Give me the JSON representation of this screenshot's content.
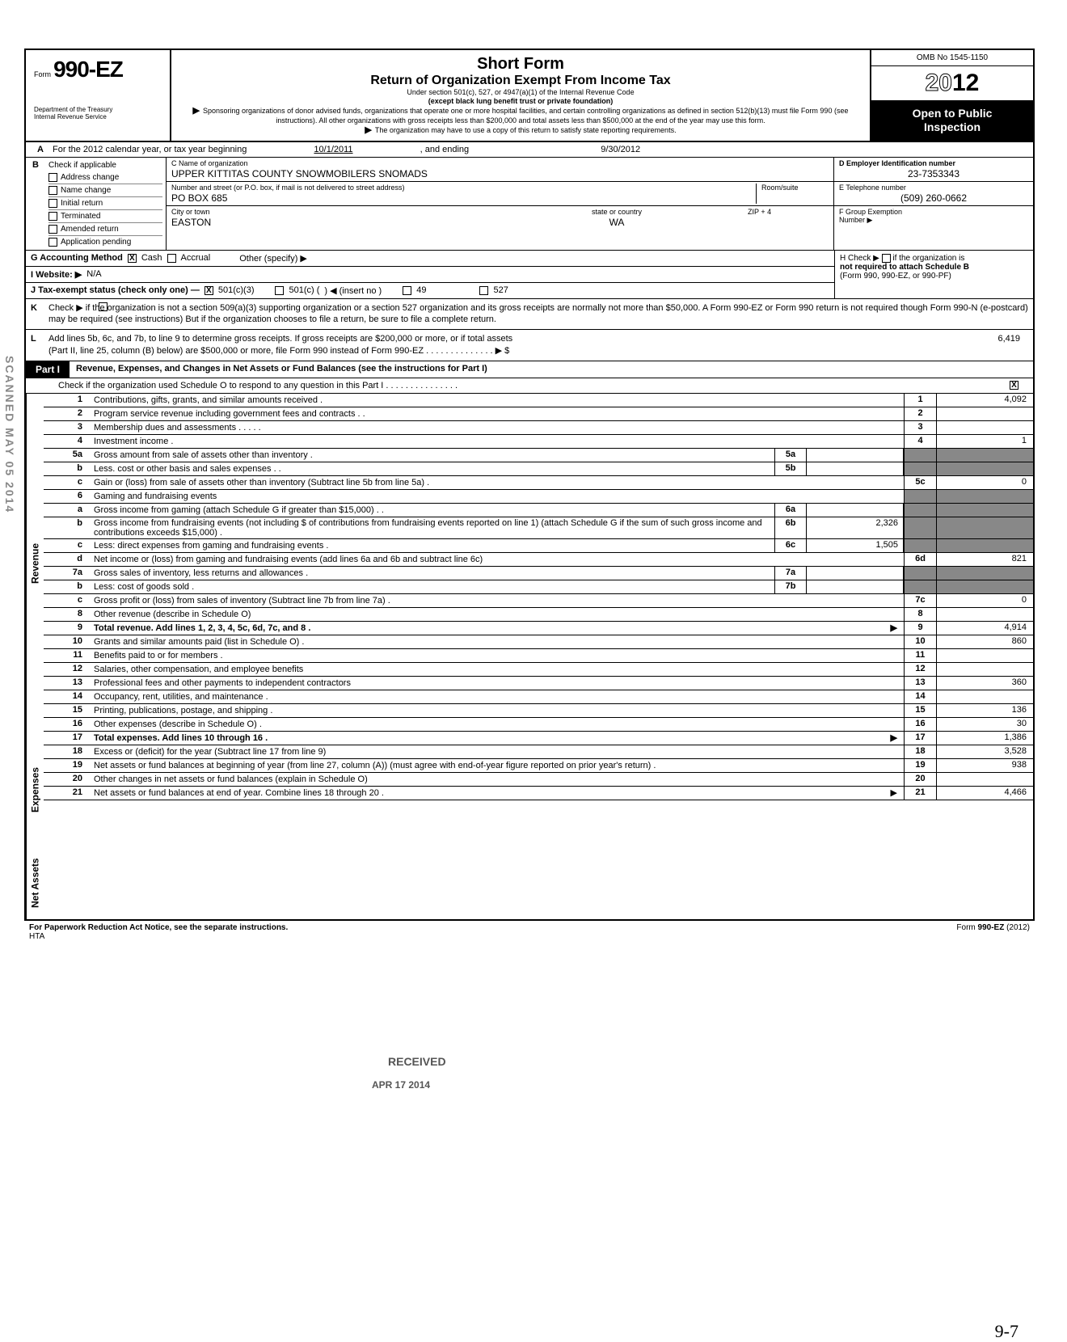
{
  "header": {
    "form_prefix": "Form",
    "form_number": "990-EZ",
    "dept1": "Department of the Treasury",
    "dept2": "Internal Revenue Service",
    "title1": "Short Form",
    "title2": "Return of Organization Exempt From Income Tax",
    "subtitle1": "Under section 501(c), 527, or 4947(a)(1) of the Internal Revenue Code",
    "subtitle2": "(except black lung benefit trust or private foundation)",
    "sponsor": "Sponsoring organizations of donor advised funds, organizations that operate one or more hospital facilities, and certain controlling organizations as defined in section 512(b)(13) must file Form 990 (see instructions). All other organizations with gross receipts less than $200,000 and total assets less than $500,000 at the end of the year may use this form.",
    "copy_note": "The organization may have to use a copy of this return to satisfy state reporting requirements.",
    "omb": "OMB No 1545-1150",
    "year": "2012",
    "open1": "Open to Public",
    "open2": "Inspection"
  },
  "section_a": {
    "text": "For the 2012 calendar year, or tax year beginning",
    "begin": "10/1/2011",
    "middle": ", and ending",
    "end": "9/30/2012"
  },
  "section_b": {
    "label": "Check if applicable",
    "items": [
      "Address change",
      "Name change",
      "Initial return",
      "Terminated",
      "Amended return",
      "Application pending"
    ]
  },
  "section_c": {
    "label_name": "C  Name of organization",
    "name": "UPPER KITTITAS COUNTY SNOWMOBILERS SNOMADS",
    "label_addr": "Number and street (or P.O. box, if mail is not delivered to street address)",
    "addr": "PO BOX 685",
    "room_label": "Room/suite",
    "label_city": "City or town",
    "city": "EASTON",
    "label_state": "state or country",
    "state": "WA",
    "label_zip": "ZIP + 4"
  },
  "section_d": {
    "label": "D  Employer Identification number",
    "value": "23-7353343"
  },
  "section_e": {
    "label": "E  Telephone number",
    "value": "(509) 260-0662"
  },
  "section_f": {
    "label": "F  Group Exemption",
    "label2": "Number ▶"
  },
  "section_g": {
    "label": "G  Accounting Method",
    "cash": "Cash",
    "accrual": "Accrual",
    "other": "Other (specify) ▶"
  },
  "section_h": {
    "label": "H Check ▶",
    "text1": "if the organization is",
    "text2": "not required to attach Schedule B",
    "text3": "(Form 990, 990-EZ, or 990-PF)"
  },
  "section_i": {
    "label": "I   Website: ▶",
    "value": "N/A"
  },
  "section_j": {
    "label": "J   Tax-exempt status (check only one) —",
    "opt1": "501(c)(3)",
    "opt2": "501(c) (",
    "insert": ") ◀ (insert no )",
    "opt3": "49",
    "opt4": "527"
  },
  "section_k": {
    "text": "Check ▶       if the organization is not a section 509(a)(3) supporting organization or a section 527 organization and its gross receipts are normally not more than $50,000. A Form 990-EZ or Form 990 return is not required though Form 990-N (e-postcard) may be required (see instructions)  But if the organization chooses to file a return, be sure to file a complete return."
  },
  "section_l": {
    "text1": "Add lines 5b, 6c, and 7b, to line 9 to determine gross receipts. If gross receipts are $200,000 or more, or if total assets",
    "text2": "(Part II, line 25, column (B) below) are $500,000 or more, file Form 990 instead of Form 990-EZ . . . . . . . . . . . . . . ▶ $",
    "amount": "6,419"
  },
  "part1": {
    "label": "Part I",
    "title": "Revenue, Expenses, and Changes in Net Assets or Fund Balances (see the instructions for Part I)",
    "subtitle": "Check if the organization used Schedule O to respond to any question in this Part I . . . . . . . . . . . . . . ."
  },
  "vert_labels": {
    "revenue": "Revenue",
    "expenses": "Expenses",
    "netassets": "Net Assets"
  },
  "lines": [
    {
      "n": "1",
      "desc": "Contributions, gifts, grants, and similar amounts received .",
      "box": "1",
      "val": "4,092"
    },
    {
      "n": "2",
      "desc": "Program service revenue including government fees and contracts . .",
      "box": "2",
      "val": ""
    },
    {
      "n": "3",
      "desc": "Membership dues and assessments . . . . .",
      "box": "3",
      "val": ""
    },
    {
      "n": "4",
      "desc": "Investment income .",
      "box": "4",
      "val": "1"
    },
    {
      "n": "5a",
      "desc": "Gross amount from sale of assets other than inventory .",
      "sub": "5a",
      "subval": "",
      "shaded": true
    },
    {
      "n": "b",
      "desc": "Less. cost or other basis and sales expenses . .",
      "sub": "5b",
      "subval": "",
      "shaded": true
    },
    {
      "n": "c",
      "desc": "Gain or (loss) from sale of assets other than inventory (Subtract line 5b from line 5a) .",
      "box": "5c",
      "val": "0"
    },
    {
      "n": "6",
      "desc": "Gaming and fundraising events",
      "shaded": true,
      "noval": true
    },
    {
      "n": "a",
      "desc": "Gross income from gaming (attach Schedule G if greater than $15,000) . .",
      "sub": "6a",
      "subval": "",
      "shaded": true
    },
    {
      "n": "b",
      "desc": "Gross income from fundraising events (not including     $                 of contributions from fundraising events reported on line 1) (attach Schedule G if the sum of such gross income and contributions exceeds $15,000) .",
      "sub": "6b",
      "subval": "2,326",
      "shaded": true
    },
    {
      "n": "c",
      "desc": "Less: direct expenses from gaming and fundraising events .",
      "sub": "6c",
      "subval": "1,505",
      "shaded": true
    },
    {
      "n": "d",
      "desc": "Net income or (loss) from gaming and fundraising events (add lines 6a and 6b and subtract line 6c)",
      "box": "6d",
      "val": "821"
    },
    {
      "n": "7a",
      "desc": "Gross sales of inventory, less returns and allowances .",
      "sub": "7a",
      "subval": "",
      "shaded": true
    },
    {
      "n": "b",
      "desc": "Less: cost of goods sold .",
      "sub": "7b",
      "subval": "",
      "shaded": true
    },
    {
      "n": "c",
      "desc": "Gross profit or (loss) from sales of inventory (Subtract line 7b from line 7a) .",
      "box": "7c",
      "val": "0"
    },
    {
      "n": "8",
      "desc": "Other revenue (describe in Schedule O)",
      "box": "8",
      "val": ""
    },
    {
      "n": "9",
      "desc": "Total revenue. Add lines 1, 2, 3, 4, 5c, 6d, 7c, and 8 .",
      "box": "9",
      "val": "4,914",
      "bold": true,
      "arrow": true
    },
    {
      "n": "10",
      "desc": "Grants and similar amounts paid (list in Schedule O) .",
      "box": "10",
      "val": "860"
    },
    {
      "n": "11",
      "desc": "Benefits paid to or for members .",
      "box": "11",
      "val": ""
    },
    {
      "n": "12",
      "desc": "Salaries, other compensation, and employee benefits",
      "box": "12",
      "val": ""
    },
    {
      "n": "13",
      "desc": "Professional fees and other payments to independent contractors",
      "box": "13",
      "val": "360"
    },
    {
      "n": "14",
      "desc": "Occupancy, rent, utilities, and maintenance .",
      "box": "14",
      "val": ""
    },
    {
      "n": "15",
      "desc": "Printing, publications, postage, and shipping .",
      "box": "15",
      "val": "136"
    },
    {
      "n": "16",
      "desc": "Other expenses (describe in Schedule O) .",
      "box": "16",
      "val": "30"
    },
    {
      "n": "17",
      "desc": "Total expenses. Add lines 10 through 16 .",
      "box": "17",
      "val": "1,386",
      "bold": true,
      "arrow": true
    },
    {
      "n": "18",
      "desc": "Excess or (deficit) for the year (Subtract line 17 from line 9)",
      "box": "18",
      "val": "3,528"
    },
    {
      "n": "19",
      "desc": "Net assets or fund balances at beginning of year (from line 27, column (A)) (must agree with end-of-year figure reported on prior year's return) .",
      "box": "19",
      "val": "938"
    },
    {
      "n": "20",
      "desc": "Other changes in net assets or fund balances (explain in Schedule O)",
      "box": "20",
      "val": ""
    },
    {
      "n": "21",
      "desc": "Net assets or fund balances at end of year. Combine lines 18 through 20 .",
      "box": "21",
      "val": "4,466",
      "arrow": true
    }
  ],
  "footer": {
    "left": "For Paperwork Reduction Act Notice, see the separate instructions.",
    "hta": "HTA",
    "right": "Form 990-EZ (2012)"
  },
  "stamps": {
    "scanned": "SCANNED MAY 05 2014",
    "received": "RECEIVED",
    "received_date": "APR 17 2014",
    "handwrite": "9-7"
  },
  "colors": {
    "border": "#000000",
    "bg": "#ffffff",
    "shaded": "#888888",
    "open_bg": "#000000",
    "open_fg": "#ffffff"
  }
}
